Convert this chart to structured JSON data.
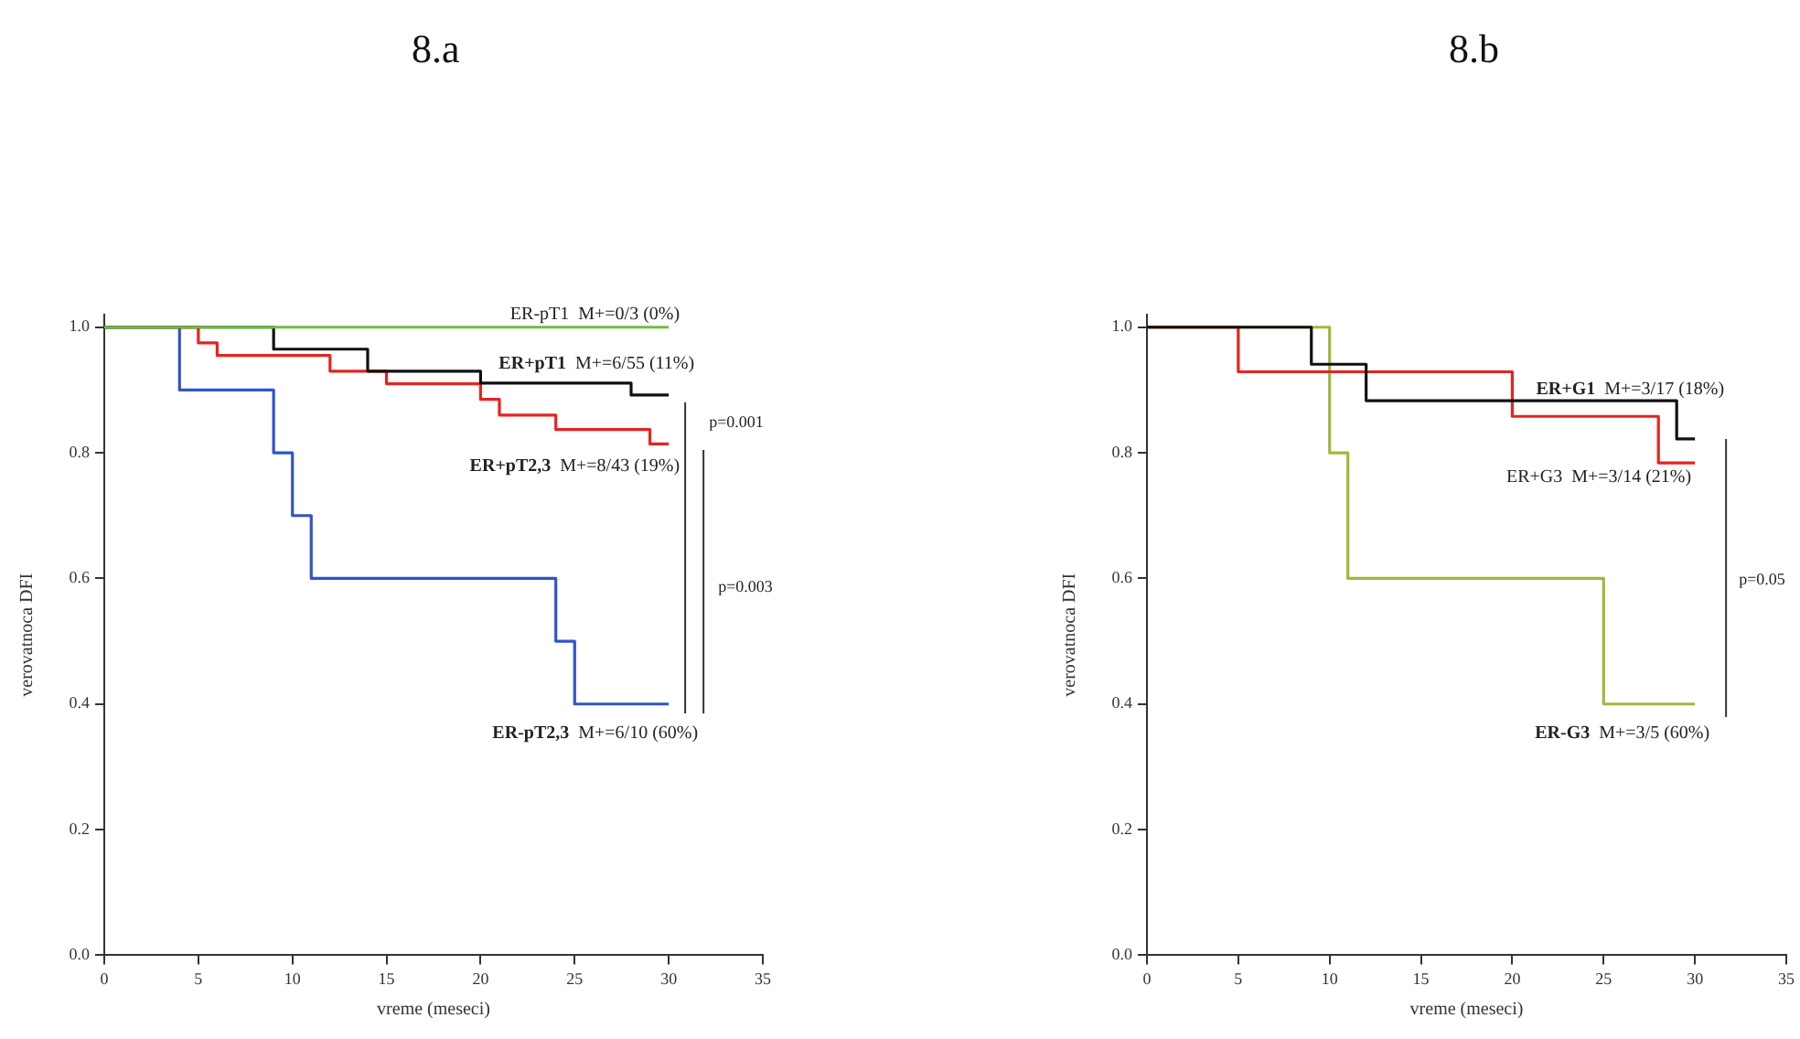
{
  "chart_data": [
    {
      "type": "step",
      "title": "8.a",
      "xlabel": "vreme (meseci)",
      "ylabel": "verovatnoca DFI",
      "xlim": [
        0,
        35
      ],
      "xticks": [
        0,
        5,
        10,
        15,
        20,
        25,
        30,
        35
      ],
      "ylim": [
        0,
        1.02
      ],
      "yticks": [
        {
          "value": 0,
          "label": "0.0"
        },
        {
          "value": 0.2,
          "label": "0.2"
        },
        {
          "value": 0.4,
          "label": "0.4"
        },
        {
          "value": 0.6,
          "label": "0.6"
        },
        {
          "value": 0.8,
          "label": "0.8"
        },
        {
          "value": 1,
          "label": "1.0"
        }
      ],
      "grid": false,
      "legend": false,
      "marker": "none",
      "series": [
        {
          "name": "ER-pT1",
          "color": "#6cbf3c",
          "x": [
            0,
            30
          ],
          "values": [
            1,
            1
          ]
        },
        {
          "name": "ER+pT1",
          "color": "#111111",
          "x": [
            0,
            9,
            14,
            20,
            28,
            30
          ],
          "values": [
            1,
            0.965,
            0.93,
            0.911,
            0.892,
            0.892
          ]
        },
        {
          "name": "ER+pT2,3",
          "color": "#e52420",
          "x": [
            0,
            5,
            6,
            12,
            15,
            20,
            21,
            24,
            29,
            30
          ],
          "values": [
            1,
            0.975,
            0.955,
            0.93,
            0.91,
            0.885,
            0.86,
            0.837,
            0.814,
            0.814
          ]
        },
        {
          "name": "ER-pT2,3",
          "color": "#2f55c8",
          "x": [
            0,
            4,
            9,
            10,
            11,
            24,
            25,
            30
          ],
          "values": [
            1,
            0.9,
            0.8,
            0.7,
            0.6,
            0.5,
            0.4,
            0.4
          ]
        }
      ],
      "annotations": [
        "M+=0/3 (0%)",
        "M+=6/55 (11%)",
        "M+=8/43 (19%)",
        "M+=6/10 (60%)",
        "p=0.001",
        "p=0.003"
      ]
    },
    {
      "type": "step",
      "title": "8.b",
      "xlabel": "vreme (meseci)",
      "ylabel": "verovatnoca DFI",
      "xlim": [
        0,
        35
      ],
      "xticks": [
        0,
        5,
        10,
        15,
        20,
        25,
        30,
        35
      ],
      "ylim": [
        0,
        1.02
      ],
      "yticks": [
        {
          "value": 0,
          "label": "0.0"
        },
        {
          "value": 0.2,
          "label": "0.2"
        },
        {
          "value": 0.4,
          "label": "0.4"
        },
        {
          "value": 0.6,
          "label": "0.6"
        },
        {
          "value": 0.8,
          "label": "0.8"
        },
        {
          "value": 1,
          "label": "1.0"
        }
      ],
      "grid": false,
      "legend": false,
      "marker": "none",
      "series": [
        {
          "name": "ER+G1",
          "color": "#111111",
          "x": [
            0,
            9,
            12,
            29,
            30
          ],
          "values": [
            1,
            0.941,
            0.883,
            0.822,
            0.822
          ]
        },
        {
          "name": "ER+G3",
          "color": "#e52420",
          "x": [
            0,
            5,
            20,
            28,
            30
          ],
          "values": [
            1,
            0.929,
            0.858,
            0.784,
            0.784
          ]
        },
        {
          "name": "ER-G3",
          "color": "#9dbb3a",
          "x": [
            0,
            10,
            11,
            25,
            30
          ],
          "values": [
            1,
            0.8,
            0.6,
            0.4,
            0.4
          ]
        }
      ],
      "annotations": [
        "M+=3/17 (18%)",
        "M+=3/14 (21%)",
        "M+=3/5 (60%)",
        "p=0.05"
      ]
    }
  ]
}
